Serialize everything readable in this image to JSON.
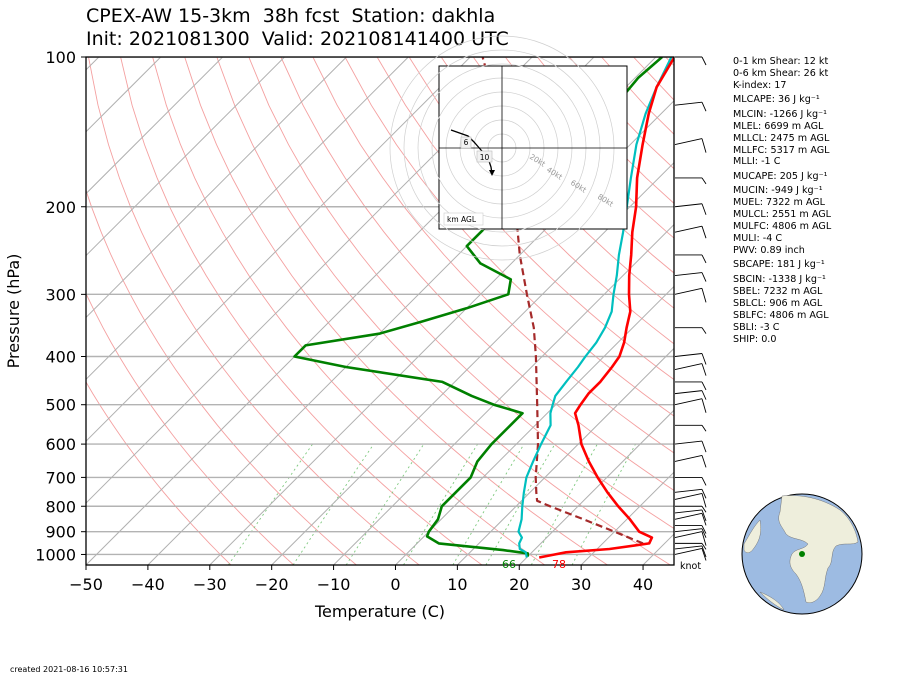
{
  "header": {
    "title_line1": "CPEX-AW 15-3km  38h fcst  Station: dakhla",
    "title_line2": "Init: 2021081300  Valid: 202108141400 UTC"
  },
  "chart_data": {
    "type": "skew-t log-p",
    "xlabel": "Temperature (C)",
    "ylabel": "Pressure (hPa)",
    "xlim": [
      -50,
      45
    ],
    "ylim": [
      1050,
      100
    ],
    "xticks": [
      "−50",
      "−40",
      "−30",
      "−20",
      "−10",
      "0",
      "10",
      "20",
      "30",
      "40"
    ],
    "yticks": [
      "100",
      "200",
      "300",
      "400",
      "500",
      "600",
      "700",
      "800",
      "900",
      "1000"
    ],
    "surface_dewpoint_label": "66",
    "surface_temp_label": "78",
    "wind_units_label": "knot",
    "colors": {
      "temperature": "#ff0000",
      "dewpoint": "#00bfbf",
      "parcel": "#a52a2a",
      "rh": "#008000",
      "dry_adiabat": "#f4a0a0",
      "isotherm": "#b0b0b0",
      "mixing_ratio": "#7fc97f"
    },
    "temperature_profile": [
      [
        1014,
        22.0
      ],
      [
        1000,
        24.0
      ],
      [
        990,
        25.5
      ],
      [
        975,
        32.0
      ],
      [
        950,
        37.5
      ],
      [
        925,
        37.0
      ],
      [
        900,
        34.0
      ],
      [
        850,
        30.5
      ],
      [
        800,
        26.5
      ],
      [
        750,
        22.5
      ],
      [
        700,
        18.5
      ],
      [
        650,
        14.5
      ],
      [
        600,
        10.5
      ],
      [
        550,
        7.0
      ],
      [
        520,
        4.5
      ],
      [
        500,
        4.0
      ],
      [
        475,
        3.5
      ],
      [
        450,
        3.5
      ],
      [
        420,
        3.0
      ],
      [
        400,
        2.5
      ],
      [
        375,
        1.0
      ],
      [
        350,
        -1.0
      ],
      [
        325,
        -3.0
      ],
      [
        300,
        -6.0
      ],
      [
        275,
        -9.0
      ],
      [
        250,
        -12.0
      ],
      [
        225,
        -15.5
      ],
      [
        200,
        -19.0
      ],
      [
        175,
        -23.5
      ],
      [
        150,
        -28.0
      ],
      [
        130,
        -32.0
      ],
      [
        115,
        -35.0
      ],
      [
        100,
        -37.0
      ]
    ],
    "dewpoint_profile": [
      [
        1014,
        20.0
      ],
      [
        990,
        19.0
      ],
      [
        975,
        17.5
      ],
      [
        950,
        16.5
      ],
      [
        925,
        16.0
      ],
      [
        900,
        14.5
      ],
      [
        850,
        13.0
      ],
      [
        800,
        11.0
      ],
      [
        750,
        9.0
      ],
      [
        700,
        7.0
      ],
      [
        650,
        5.5
      ],
      [
        600,
        4.0
      ],
      [
        550,
        2.5
      ],
      [
        520,
        0.5
      ],
      [
        500,
        -0.5
      ],
      [
        480,
        -1.5
      ],
      [
        450,
        -2.0
      ],
      [
        420,
        -2.5
      ],
      [
        400,
        -3.0
      ],
      [
        375,
        -3.5
      ],
      [
        350,
        -4.5
      ],
      [
        325,
        -6.0
      ],
      [
        300,
        -8.5
      ],
      [
        275,
        -11.0
      ],
      [
        250,
        -14.0
      ],
      [
        225,
        -17.0
      ],
      [
        200,
        -20.5
      ],
      [
        175,
        -24.5
      ],
      [
        150,
        -29.0
      ],
      [
        130,
        -32.5
      ],
      [
        115,
        -35.0
      ],
      [
        100,
        -37.5
      ]
    ],
    "parcel_profile": [
      [
        950,
        36.5
      ],
      [
        900,
        30.0
      ],
      [
        850,
        23.0
      ],
      [
        800,
        15.5
      ],
      [
        780,
        12.5
      ],
      [
        750,
        11.0
      ],
      [
        700,
        8.5
      ],
      [
        600,
        3.5
      ],
      [
        500,
        -3.0
      ],
      [
        400,
        -11.0
      ],
      [
        350,
        -16.0
      ],
      [
        300,
        -22.5
      ],
      [
        250,
        -30.0
      ],
      [
        200,
        -38.5
      ],
      [
        150,
        -50.0
      ],
      [
        100,
        -68.0
      ]
    ],
    "rh_profile": [
      [
        1010,
        20.0
      ],
      [
        995,
        19.5
      ],
      [
        980,
        15.0
      ],
      [
        950,
        3.5
      ],
      [
        920,
        0.5
      ],
      [
        900,
        0.0
      ],
      [
        850,
        -0.5
      ],
      [
        800,
        -2.0
      ],
      [
        750,
        -2.0
      ],
      [
        700,
        -2.0
      ],
      [
        650,
        -3.5
      ],
      [
        600,
        -4.0
      ],
      [
        550,
        -4.0
      ],
      [
        520,
        -4.0
      ],
      [
        500,
        -10.0
      ],
      [
        480,
        -15.0
      ],
      [
        450,
        -22.0
      ],
      [
        420,
        -40.0
      ],
      [
        400,
        -50.0
      ],
      [
        380,
        -50.0
      ],
      [
        360,
        -40.0
      ],
      [
        340,
        -35.0
      ],
      [
        320,
        -30.0
      ],
      [
        300,
        -25.5
      ],
      [
        280,
        -27.5
      ],
      [
        260,
        -35.0
      ],
      [
        240,
        -40.0
      ],
      [
        220,
        -40.0
      ],
      [
        200,
        -38.5
      ],
      [
        180,
        -36.5
      ],
      [
        160,
        -35.0
      ],
      [
        140,
        -35.5
      ],
      [
        130,
        -37.0
      ],
      [
        120,
        -39.0
      ],
      [
        110,
        -39.5
      ],
      [
        100,
        -39.0
      ]
    ],
    "hodograph": {
      "ring_labels": [
        "20kt",
        "40kt",
        "60kt",
        "80kt"
      ],
      "height_labels": [
        "6",
        "10"
      ],
      "units_label": "km AGL"
    }
  },
  "indices": [
    "0-1 km Shear: 12 kt",
    "0-6 km Shear: 26 kt",
    "K-index: 17",
    "MLCAPE: 36 J kg⁻¹",
    "MLCIN: -1266 J kg⁻¹",
    "MLEL: 6699 m AGL",
    "MLLCL: 2475 m AGL",
    "MLLFC: 5317 m AGL",
    "MLLI: -1 C",
    "MUCAPE: 205 J kg⁻¹",
    "MUCIN: -949 J kg⁻¹",
    "MUEL: 7322 m AGL",
    "MULCL: 2551 m AGL",
    "MULFC: 4806 m AGL",
    "MULI: -4 C",
    "PWV: 0.89 inch",
    "SBCAPE: 181 J kg⁻¹",
    "SBCIN: -1338 J kg⁻¹",
    "SBEL: 7232 m AGL",
    "SBLCL: 906 m AGL",
    "SBLFC: 4806 m AGL",
    "SBLI: -3 C",
    "SHIP: 0.0"
  ],
  "footer": {
    "created": "created 2021-08-16 10:57:31"
  }
}
